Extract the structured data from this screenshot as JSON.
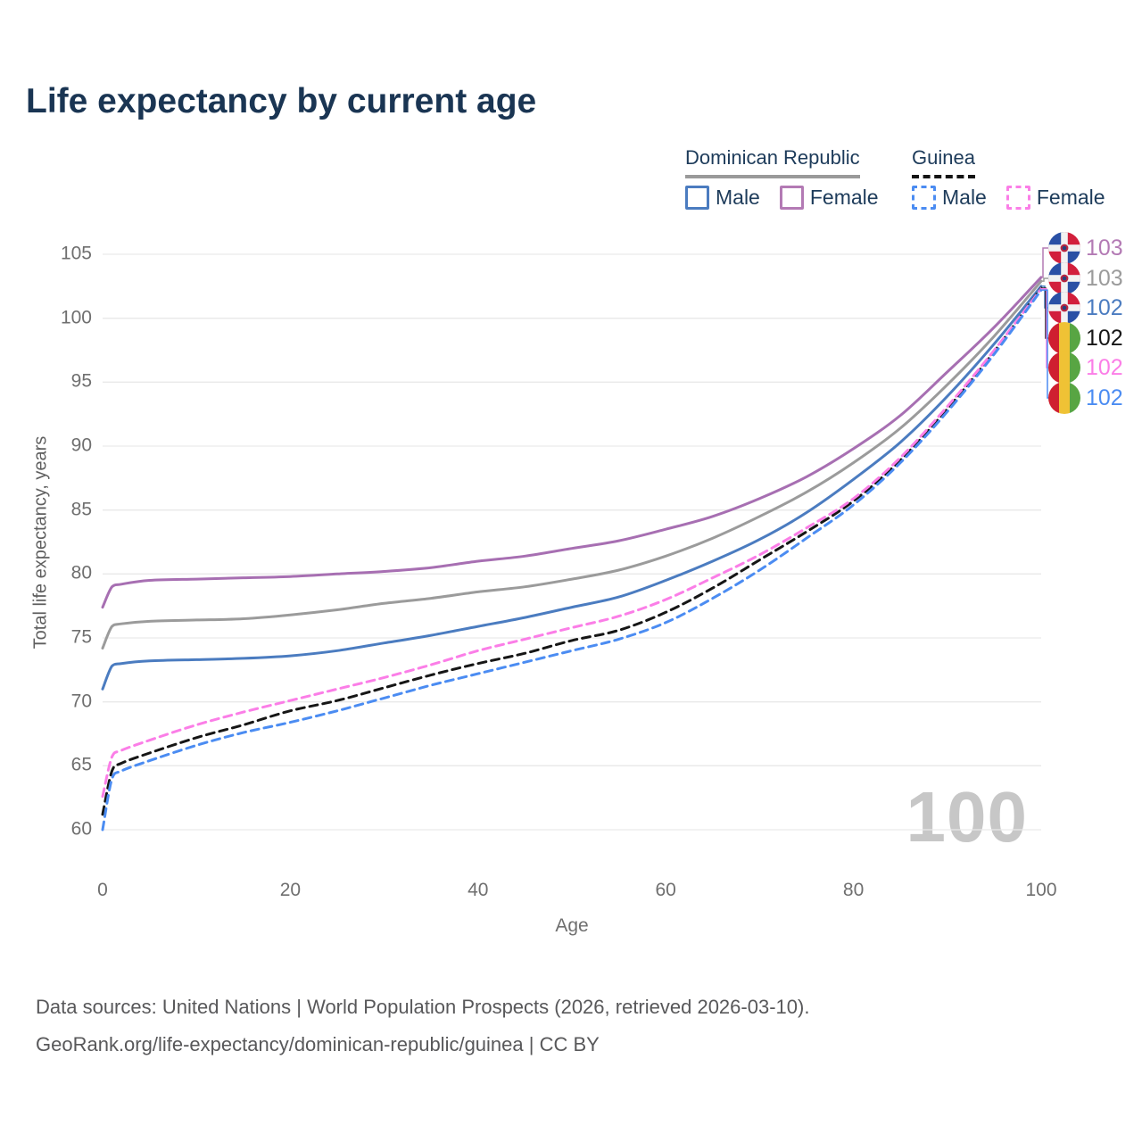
{
  "title": "Life expectancy by current age",
  "watermark": "100",
  "legend": {
    "groups": [
      {
        "label": "Dominican Republic",
        "line_style": "solid",
        "underline_color": "#9a9a9a",
        "items": [
          {
            "label": "Male",
            "color": "#4b7cc0"
          },
          {
            "label": "Female",
            "color": "#b37ab4"
          }
        ]
      },
      {
        "label": "Guinea",
        "line_style": "dashed",
        "underline_color": "#141414",
        "items": [
          {
            "label": "Male",
            "color": "#4b8cf2"
          },
          {
            "label": "Female",
            "color": "#fb7ee7"
          }
        ]
      }
    ]
  },
  "y_axis": {
    "title": "Total life expectancy, years",
    "min": 60,
    "max": 105,
    "ticks": [
      105,
      100,
      95,
      90,
      85,
      80,
      75,
      70,
      65,
      60
    ]
  },
  "x_axis": {
    "title": "Age",
    "min": 0,
    "max": 100,
    "ticks": [
      0,
      20,
      40,
      60,
      80,
      100
    ]
  },
  "annotations": [
    {
      "flag": "dominican-republic",
      "value": "103",
      "color": "#b37ab4",
      "series": "Dominican Republic — Female"
    },
    {
      "flag": "dominican-republic",
      "value": "103",
      "color": "#9b9b9b",
      "series": "Dominican Republic — Both sexes"
    },
    {
      "flag": "dominican-republic",
      "value": "102",
      "color": "#4b7cc0",
      "series": "Dominican Republic — Male"
    },
    {
      "flag": "guinea",
      "value": "102",
      "color": "#161616",
      "series": "Guinea — Both sexes"
    },
    {
      "flag": "guinea",
      "value": "102",
      "color": "#fb7ee7",
      "series": "Guinea — Female"
    },
    {
      "flag": "guinea",
      "value": "102",
      "color": "#4b8cf2",
      "series": "Guinea — Male"
    }
  ],
  "footer": {
    "line1": "Data sources: United Nations | World Population Prospects (2026, retrieved 2026-03-10).",
    "line2": "GeoRank.org/life-expectancy/dominican-republic/guinea | CC BY"
  },
  "chart_data": {
    "type": "line",
    "title": "Life expectancy by current age",
    "xlabel": "Age",
    "ylabel": "Total life expectancy, years",
    "xlim": [
      0,
      100
    ],
    "ylim": [
      60,
      105
    ],
    "grid": "horizontal",
    "legend_position": "top-right",
    "x": [
      0,
      1,
      2,
      5,
      10,
      15,
      20,
      25,
      30,
      35,
      40,
      45,
      50,
      55,
      60,
      65,
      70,
      75,
      80,
      85,
      90,
      95,
      100
    ],
    "series": [
      {
        "name": "Dominican Republic — Both sexes",
        "color": "#9b9b9b",
        "dash": false,
        "end_label": "103",
        "values": [
          74.2,
          75.9,
          76.1,
          76.3,
          76.4,
          76.5,
          76.8,
          77.2,
          77.7,
          78.1,
          78.6,
          79.0,
          79.6,
          80.3,
          81.4,
          82.8,
          84.5,
          86.4,
          88.7,
          91.4,
          94.8,
          98.6,
          102.9
        ]
      },
      {
        "name": "Dominican Republic — Female",
        "color": "#a76fb2",
        "dash": false,
        "end_label": "103",
        "values": [
          77.4,
          79.0,
          79.2,
          79.5,
          79.6,
          79.7,
          79.8,
          80.0,
          80.2,
          80.5,
          81.0,
          81.4,
          82.0,
          82.6,
          83.5,
          84.5,
          85.9,
          87.6,
          89.8,
          92.4,
          95.8,
          99.3,
          103.2
        ]
      },
      {
        "name": "Dominican Republic — Male",
        "color": "#4b7cc0",
        "dash": false,
        "end_label": "102",
        "values": [
          71.0,
          72.8,
          73.0,
          73.2,
          73.3,
          73.4,
          73.6,
          74.0,
          74.6,
          75.2,
          75.9,
          76.6,
          77.4,
          78.2,
          79.5,
          81.0,
          82.7,
          84.8,
          87.4,
          90.3,
          93.9,
          98.0,
          102.5
        ]
      },
      {
        "name": "Guinea — Both sexes",
        "color": "#161616",
        "dash": true,
        "end_label": "102",
        "values": [
          61.2,
          64.6,
          65.2,
          66.0,
          67.2,
          68.2,
          69.3,
          70.1,
          71.1,
          72.1,
          73.0,
          73.8,
          74.8,
          75.6,
          77.0,
          78.9,
          81.1,
          83.3,
          85.7,
          88.9,
          92.9,
          97.4,
          102.35
        ]
      },
      {
        "name": "Guinea — Female",
        "color": "#fb7ee7",
        "dash": true,
        "end_label": "102",
        "values": [
          62.6,
          65.7,
          66.2,
          67.0,
          68.2,
          69.2,
          70.1,
          71.0,
          71.9,
          72.9,
          74.0,
          74.9,
          75.8,
          76.7,
          78.0,
          79.7,
          81.5,
          83.6,
          85.9,
          89.1,
          93.1,
          97.5,
          102.3
        ]
      },
      {
        "name": "Guinea — Male",
        "color": "#4b8cf2",
        "dash": true,
        "end_label": "102",
        "values": [
          60.0,
          64.0,
          64.6,
          65.4,
          66.6,
          67.6,
          68.4,
          69.3,
          70.3,
          71.3,
          72.2,
          73.1,
          74.0,
          74.9,
          76.2,
          78.1,
          80.3,
          82.8,
          85.4,
          88.7,
          92.7,
          97.2,
          102.2
        ]
      }
    ]
  }
}
